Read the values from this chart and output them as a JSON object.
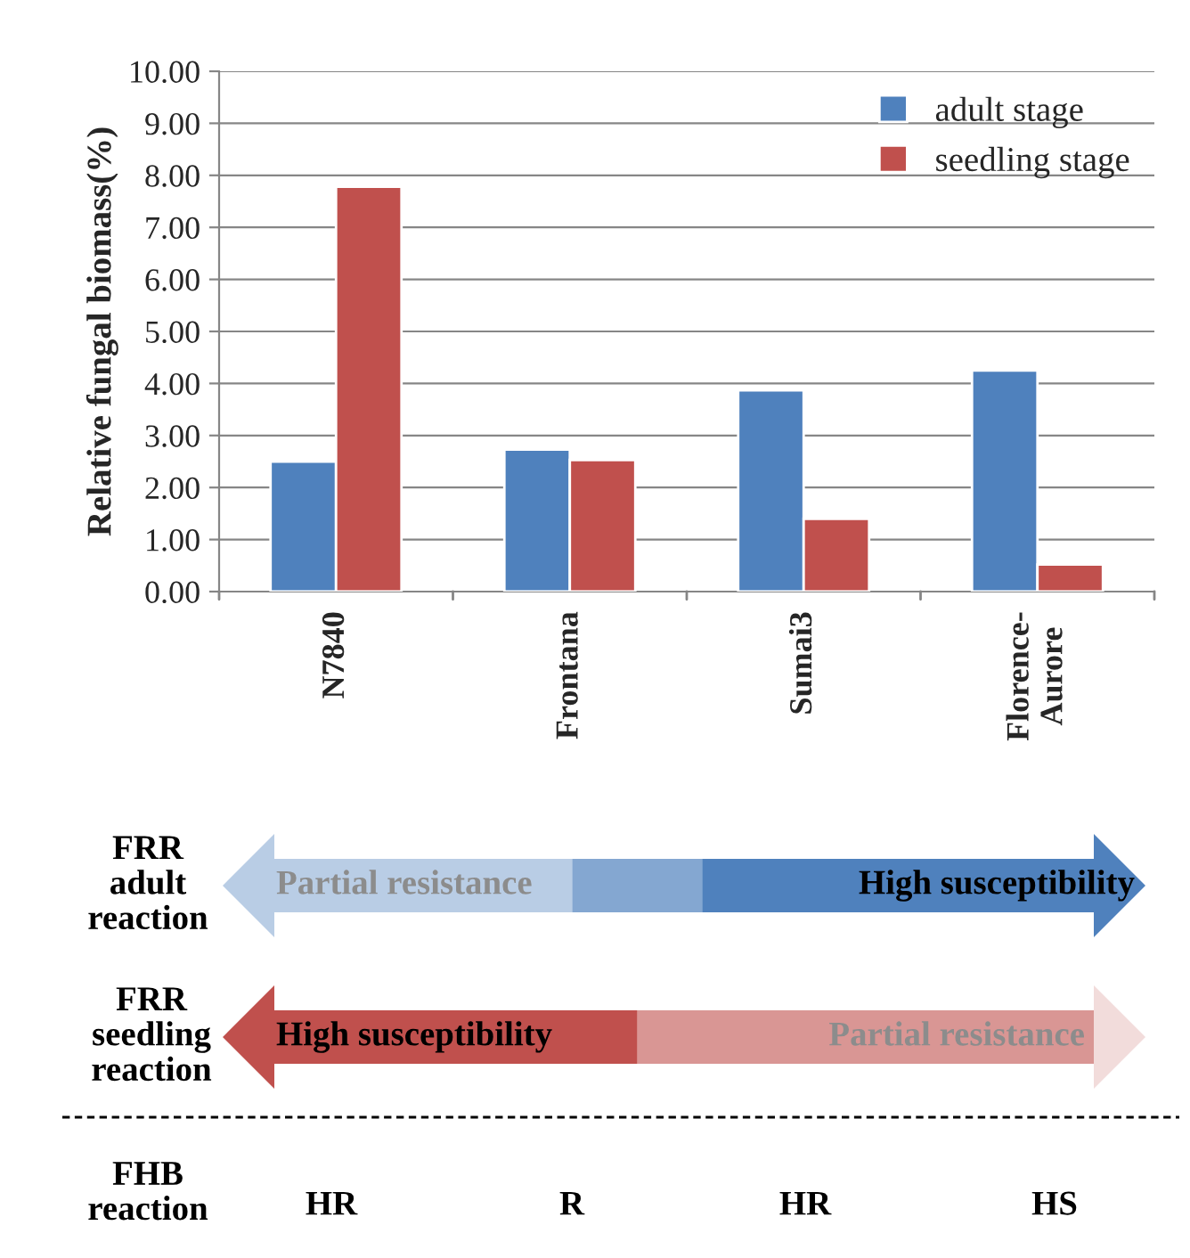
{
  "chart_data": {
    "type": "bar",
    "ylabel": "Relative fungal biomass(%)",
    "categories": [
      "N7840",
      "Frontana",
      "Sumai3",
      "Florence-\nAurore"
    ],
    "series": [
      {
        "name": "adult stage",
        "color": "#4f81bd",
        "values": [
          2.5,
          2.73,
          3.87,
          4.25
        ]
      },
      {
        "name": "seedling stage",
        "color": "#c0504d",
        "values": [
          7.78,
          2.53,
          1.4,
          0.52
        ]
      }
    ],
    "ylim": [
      0,
      10
    ],
    "yticks": [
      {
        "value": 0,
        "label": "0.00"
      },
      {
        "value": 1,
        "label": "1.00"
      },
      {
        "value": 2,
        "label": "2.00"
      },
      {
        "value": 3,
        "label": "3.00"
      },
      {
        "value": 4,
        "label": "4.00"
      },
      {
        "value": 5,
        "label": "5.00"
      },
      {
        "value": 6,
        "label": "6.00"
      },
      {
        "value": 7,
        "label": "7.00"
      },
      {
        "value": 8,
        "label": "8.00"
      },
      {
        "value": 9,
        "label": "9.00"
      },
      {
        "value": 10,
        "label": "10.00"
      }
    ],
    "grid": "y",
    "legend": "top right",
    "annotations": [
      "FRR\nadult\nreaction",
      "Partial resistance",
      "High susceptibility",
      "FRR\nseedling\nreaction",
      "High susceptibility",
      "Partial resistance",
      "FHB\nreaction",
      "HR",
      "R",
      "HR",
      "HS"
    ]
  }
}
